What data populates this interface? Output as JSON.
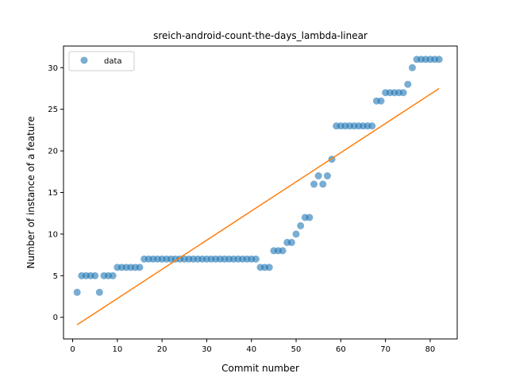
{
  "chart_data": {
    "type": "scatter",
    "title": "sreich-android-count-the-days_lambda-linear",
    "xlabel": "Commit number",
    "ylabel": "Number of instance of a feature",
    "xlim": [
      -2.05,
      86.05
    ],
    "ylim": [
      -2.6,
      32.6
    ],
    "xticks": [
      0,
      10,
      20,
      30,
      40,
      50,
      60,
      70,
      80
    ],
    "yticks": [
      0,
      5,
      10,
      15,
      20,
      25,
      30
    ],
    "grid": false,
    "legend": {
      "position": "top-left",
      "entries": [
        "data"
      ]
    },
    "colors": {
      "data": "#1f77b4",
      "fit": "#ff7f0e"
    },
    "series": [
      {
        "name": "data",
        "kind": "scatter",
        "x": [
          1,
          2,
          3,
          4,
          5,
          6,
          7,
          8,
          9,
          10,
          11,
          12,
          13,
          14,
          15,
          16,
          17,
          18,
          19,
          20,
          21,
          22,
          23,
          24,
          25,
          26,
          27,
          28,
          29,
          30,
          31,
          32,
          33,
          34,
          35,
          36,
          37,
          38,
          39,
          40,
          41,
          42,
          43,
          44,
          45,
          46,
          47,
          48,
          49,
          50,
          51,
          52,
          53,
          54,
          55,
          56,
          57,
          58,
          59,
          60,
          61,
          62,
          63,
          64,
          65,
          66,
          67,
          68,
          69,
          70,
          71,
          72,
          73,
          74,
          75,
          76,
          77,
          78,
          79,
          80,
          81,
          82
        ],
        "y": [
          3,
          5,
          5,
          5,
          5,
          3,
          5,
          5,
          5,
          6,
          6,
          6,
          6,
          6,
          6,
          7,
          7,
          7,
          7,
          7,
          7,
          7,
          7,
          7,
          7,
          7,
          7,
          7,
          7,
          7,
          7,
          7,
          7,
          7,
          7,
          7,
          7,
          7,
          7,
          7,
          7,
          6,
          6,
          6,
          8,
          8,
          8,
          9,
          9,
          10,
          11,
          12,
          12,
          16,
          17,
          16,
          17,
          19,
          23,
          23,
          23,
          23,
          23,
          23,
          23,
          23,
          23,
          26,
          26,
          27,
          27,
          27,
          27,
          27,
          28,
          30,
          31,
          31,
          31,
          31,
          31,
          31
        ]
      },
      {
        "kind": "line",
        "x": [
          1,
          82
        ],
        "y": [
          -0.9,
          27.5
        ]
      }
    ]
  }
}
